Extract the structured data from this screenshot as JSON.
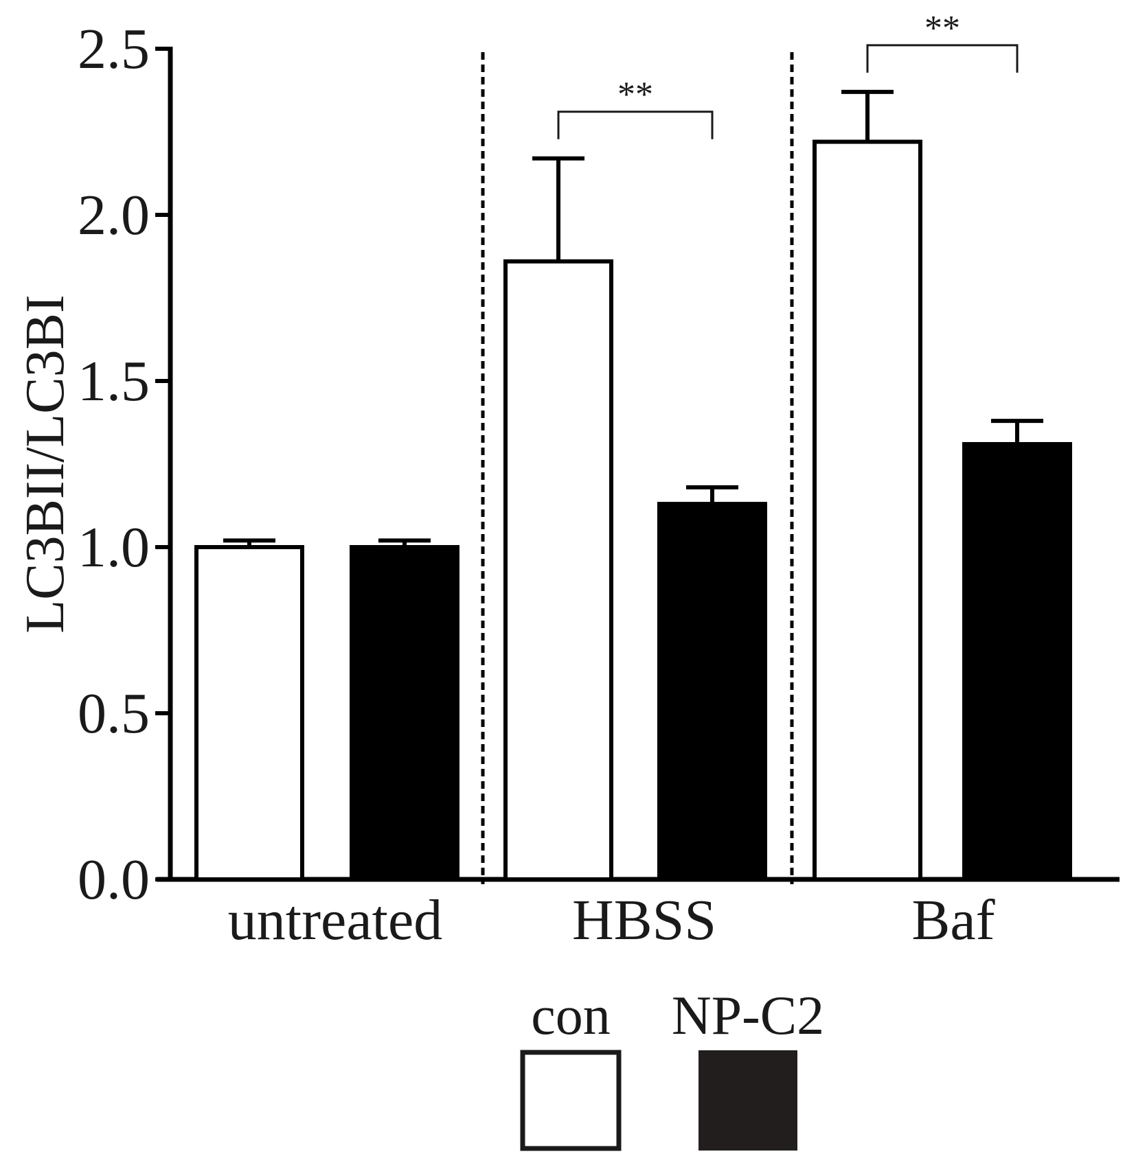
{
  "chart_data": {
    "type": "bar",
    "ylabel": "LC3BII/LC3BI",
    "xlabel": "",
    "ylim": [
      0,
      2.5
    ],
    "yticks": [
      "0.0",
      "0.5",
      "1.0",
      "1.5",
      "2.0",
      "2.5"
    ],
    "ytick_values": [
      0,
      0.5,
      1.0,
      1.5,
      2.0,
      2.5
    ],
    "categories": [
      "untreated",
      "HBSS",
      "Baf"
    ],
    "series": [
      {
        "name": "con",
        "values": [
          1.0,
          1.86,
          2.22
        ],
        "errors": [
          0.02,
          0.31,
          0.15
        ],
        "color": "#ffffff"
      },
      {
        "name": "NP-C2",
        "values": [
          1.0,
          1.13,
          1.31
        ],
        "errors": [
          0.02,
          0.05,
          0.07
        ],
        "color": "#000000"
      }
    ],
    "significance": [
      {
        "category": "HBSS",
        "label": "**"
      },
      {
        "category": "Baf",
        "label": "**"
      }
    ],
    "group_separators": "dashed",
    "legend": {
      "placement": "bottom-center",
      "items": [
        "con",
        "NP-C2"
      ]
    },
    "grid": false
  }
}
